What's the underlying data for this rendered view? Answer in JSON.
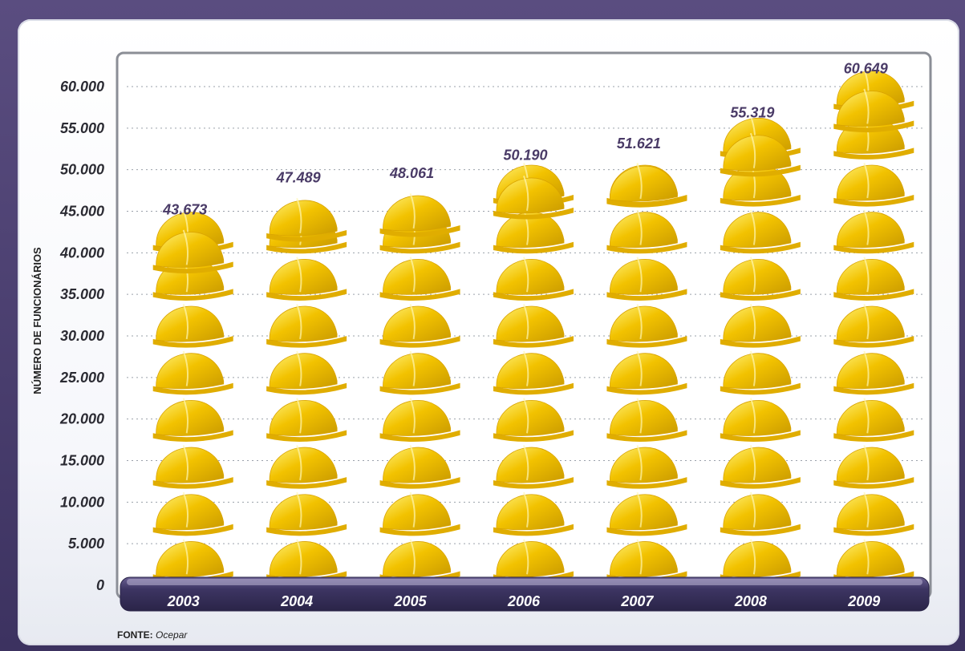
{
  "chart_data": {
    "type": "bar",
    "title": "",
    "xlabel": "",
    "ylabel": "NÚMERO DE FUNCIONÁRIOS",
    "categories": [
      "2003",
      "2004",
      "2005",
      "2006",
      "2007",
      "2008",
      "2009"
    ],
    "values": [
      43673,
      47489,
      48061,
      50190,
      51621,
      55319,
      60649
    ],
    "value_labels": [
      "43.673",
      "47.489",
      "48.061",
      "50.190",
      "51.621",
      "55.319",
      "60.649"
    ],
    "yticks": [
      0,
      5000,
      10000,
      15000,
      20000,
      25000,
      30000,
      35000,
      40000,
      45000,
      50000,
      55000,
      60000
    ],
    "ytick_labels": [
      "0",
      "5.000",
      "10.000",
      "15.000",
      "20.000",
      "25.000",
      "30.000",
      "35.000",
      "40.000",
      "45.000",
      "50.000",
      "55.000",
      "60.000"
    ],
    "ylim": [
      0,
      63000
    ],
    "grid": true,
    "legend": "none",
    "mark": "hard-hat-icon",
    "colors": {
      "bar": "#f2c200",
      "bar_shade": "#c99a00",
      "base": "#3d3563",
      "value_label": "#4a3b67"
    }
  },
  "source": {
    "label": "FONTE:",
    "value": "Ocepar"
  }
}
